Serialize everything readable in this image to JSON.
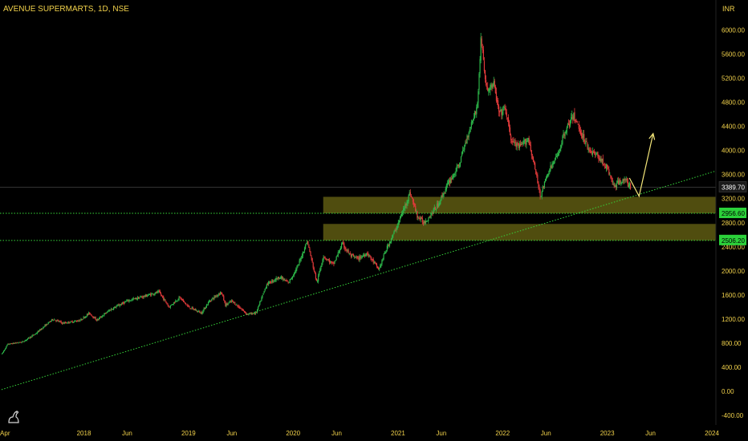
{
  "header": {
    "symbol": "AVENUE SUPERMARTS",
    "separator1": ", ",
    "interval": "1D",
    "separator2": ", ",
    "exchange": "NSE"
  },
  "currency_label": "INR",
  "colors": {
    "background": "#000000",
    "axis_text": "#f2d24b",
    "up_candle": "#2db84a",
    "down_candle": "#e03a3a",
    "zone_fill": "#5e5a12",
    "support_line": "#36d63a",
    "trendline": "#36d63a",
    "projection": "#f5e77a",
    "last_price_tag": "#1a1a1a",
    "level_tag": "#2bd13a"
  },
  "icons": {
    "logo": "tradingview-dino-icon"
  },
  "chart_data": {
    "type": "candlestick",
    "title": "AVENUE SUPERMARTS, 1D, NSE",
    "ylabel": "INR",
    "x_range": [
      "2017-03-20",
      "2024-01-15"
    ],
    "ylim": [
      -560,
      6500
    ],
    "y_ticks": [
      6000,
      5600,
      5200,
      4800,
      4400,
      4000,
      3600,
      3200,
      2800,
      2400,
      2000,
      1600,
      1200,
      800,
      400,
      0,
      -400
    ],
    "y_tick_labels": [
      "6000.00",
      "5600.00",
      "5200.00",
      "4800.00",
      "4400.00",
      "4000.00",
      "3600.00",
      "3200.00",
      "2800.00",
      "2400.00",
      "2000.00",
      "1600.00",
      "1200.00",
      "800.00",
      "400.00",
      "0.00",
      "-400.00"
    ],
    "x_ticks": [
      {
        "label": "Apr",
        "date": "2017-04-01"
      },
      {
        "label": "2018",
        "date": "2018-01-01"
      },
      {
        "label": "Jun",
        "date": "2018-06-01"
      },
      {
        "label": "2019",
        "date": "2019-01-01"
      },
      {
        "label": "Jun",
        "date": "2019-06-01"
      },
      {
        "label": "2020",
        "date": "2020-01-01"
      },
      {
        "label": "Jun",
        "date": "2020-06-01"
      },
      {
        "label": "2021",
        "date": "2021-01-01"
      },
      {
        "label": "Jun",
        "date": "2021-06-01"
      },
      {
        "label": "2022",
        "date": "2022-01-01"
      },
      {
        "label": "Jun",
        "date": "2022-06-01"
      },
      {
        "label": "2023",
        "date": "2023-01-01"
      },
      {
        "label": "Jun",
        "date": "2023-06-01"
      },
      {
        "label": "2024",
        "date": "2024-01-01"
      }
    ],
    "price_path": [
      [
        "2017-03-21",
        620
      ],
      [
        "2017-04-10",
        780
      ],
      [
        "2017-06-01",
        820
      ],
      [
        "2017-07-15",
        950
      ],
      [
        "2017-09-15",
        1200
      ],
      [
        "2017-10-20",
        1130
      ],
      [
        "2017-12-20",
        1180
      ],
      [
        "2018-01-20",
        1300
      ],
      [
        "2018-02-15",
        1180
      ],
      [
        "2018-04-01",
        1350
      ],
      [
        "2018-06-01",
        1500
      ],
      [
        "2018-08-01",
        1580
      ],
      [
        "2018-09-20",
        1650
      ],
      [
        "2018-10-25",
        1400
      ],
      [
        "2018-12-01",
        1560
      ],
      [
        "2019-01-01",
        1400
      ],
      [
        "2019-02-15",
        1300
      ],
      [
        "2019-03-15",
        1500
      ],
      [
        "2019-04-25",
        1650
      ],
      [
        "2019-05-10",
        1430
      ],
      [
        "2019-06-01",
        1500
      ],
      [
        "2019-07-25",
        1280
      ],
      [
        "2019-08-25",
        1300
      ],
      [
        "2019-10-01",
        1780
      ],
      [
        "2019-11-15",
        1900
      ],
      [
        "2019-12-15",
        1800
      ],
      [
        "2020-01-15",
        2050
      ],
      [
        "2020-02-19",
        2500
      ],
      [
        "2020-03-24",
        1800
      ],
      [
        "2020-04-15",
        2250
      ],
      [
        "2020-05-20",
        2100
      ],
      [
        "2020-06-20",
        2450
      ],
      [
        "2020-07-20",
        2250
      ],
      [
        "2020-08-15",
        2200
      ],
      [
        "2020-09-15",
        2300
      ],
      [
        "2020-10-26",
        2020
      ],
      [
        "2020-11-20",
        2350
      ],
      [
        "2020-12-20",
        2650
      ],
      [
        "2021-01-15",
        2950
      ],
      [
        "2021-02-12",
        3300
      ],
      [
        "2021-03-10",
        2900
      ],
      [
        "2021-04-01",
        2800
      ],
      [
        "2021-04-20",
        2900
      ],
      [
        "2021-05-20",
        3100
      ],
      [
        "2021-06-25",
        3450
      ],
      [
        "2021-08-01",
        3750
      ],
      [
        "2021-09-10",
        4400
      ],
      [
        "2021-10-05",
        4750
      ],
      [
        "2021-10-18",
        5900
      ],
      [
        "2021-11-05",
        5000
      ],
      [
        "2021-12-01",
        5100
      ],
      [
        "2021-12-20",
        4600
      ],
      [
        "2022-01-10",
        4700
      ],
      [
        "2022-02-01",
        4150
      ],
      [
        "2022-03-01",
        4050
      ],
      [
        "2022-04-01",
        4200
      ],
      [
        "2022-05-13",
        3250
      ],
      [
        "2022-06-10",
        3650
      ],
      [
        "2022-07-10",
        3900
      ],
      [
        "2022-08-05",
        4300
      ],
      [
        "2022-09-05",
        4580
      ],
      [
        "2022-10-01",
        4300
      ],
      [
        "2022-11-01",
        4000
      ],
      [
        "2022-12-01",
        3900
      ],
      [
        "2023-01-01",
        3700
      ],
      [
        "2023-01-25",
        3400
      ],
      [
        "2023-02-25",
        3530
      ],
      [
        "2023-03-25",
        3390
      ]
    ],
    "last_price": 3389.7,
    "last_price_label": "3389.70",
    "support_levels": [
      {
        "value": 2956.6,
        "label": "2956.60"
      },
      {
        "value": 2506.2,
        "label": "2506.20"
      }
    ],
    "zones": [
      {
        "from_date": "2020-04-15",
        "to_date": "2024-01-15",
        "low": 2956.6,
        "high": 3230
      },
      {
        "from_date": "2020-04-15",
        "to_date": "2024-01-15",
        "low": 2506.2,
        "high": 2780
      }
    ],
    "trendline": {
      "from": [
        "2017-03-01",
        0
      ],
      "to": [
        "2024-01-15",
        3660
      ]
    },
    "projection": [
      [
        "2023-03-25",
        3330
      ],
      [
        "2023-06-10",
        4280
      ]
    ],
    "grid": false,
    "legend": "none"
  }
}
